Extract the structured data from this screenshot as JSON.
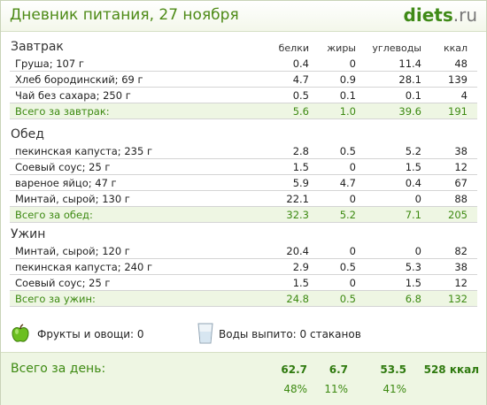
{
  "title": "Дневник питания, 27 ноября",
  "logo": {
    "brand": "diets",
    "tld": ".ru"
  },
  "columns": [
    "белки",
    "жиры",
    "углеводы",
    "ккал"
  ],
  "sections": [
    {
      "name": "Завтрак",
      "rows": [
        {
          "label": "Груша; 107 г",
          "v": [
            "0.4",
            "0",
            "11.4",
            "48"
          ]
        },
        {
          "label": "Хлеб бородинский; 69 г",
          "v": [
            "4.7",
            "0.9",
            "28.1",
            "139"
          ]
        },
        {
          "label": "Чай без сахара; 250 г",
          "v": [
            "0.5",
            "0.1",
            "0.1",
            "4"
          ]
        }
      ],
      "total": {
        "label": "Всего за завтрак:",
        "v": [
          "5.6",
          "1.0",
          "39.6",
          "191"
        ]
      }
    },
    {
      "name": "Обед",
      "rows": [
        {
          "label": "пекинская капуста; 235 г",
          "v": [
            "2.8",
            "0.5",
            "5.2",
            "38"
          ]
        },
        {
          "label": "Соевый соус; 25 г",
          "v": [
            "1.5",
            "0",
            "1.5",
            "12"
          ]
        },
        {
          "label": "вареное яйцо; 47 г",
          "v": [
            "5.9",
            "4.7",
            "0.4",
            "67"
          ]
        },
        {
          "label": "Минтай, сырой; 130 г",
          "v": [
            "22.1",
            "0",
            "0",
            "88"
          ]
        }
      ],
      "total": {
        "label": "Всего за обед:",
        "v": [
          "32.3",
          "5.2",
          "7.1",
          "205"
        ]
      }
    },
    {
      "name": "Ужин",
      "rows": [
        {
          "label": "Минтай, сырой; 120 г",
          "v": [
            "20.4",
            "0",
            "0",
            "82"
          ]
        },
        {
          "label": "пекинская капуста; 240 г",
          "v": [
            "2.9",
            "0.5",
            "5.3",
            "38"
          ]
        },
        {
          "label": "Соевый соус; 25 г",
          "v": [
            "1.5",
            "0",
            "1.5",
            "12"
          ]
        }
      ],
      "total": {
        "label": "Всего за ужин:",
        "v": [
          "24.8",
          "0.5",
          "6.8",
          "132"
        ]
      }
    }
  ],
  "extras": {
    "fruits": "Фрукты и овощи: 0",
    "water": "Воды выпито: 0 стаканов"
  },
  "day_total": {
    "label": "Всего за день:",
    "values": [
      "62.7",
      "6.7",
      "53.5",
      "528 ккал"
    ],
    "percents": [
      "48%",
      "11%",
      "41%"
    ]
  },
  "colors": {
    "accent": "#4d8a16",
    "total_bg": "#eef6e3"
  }
}
